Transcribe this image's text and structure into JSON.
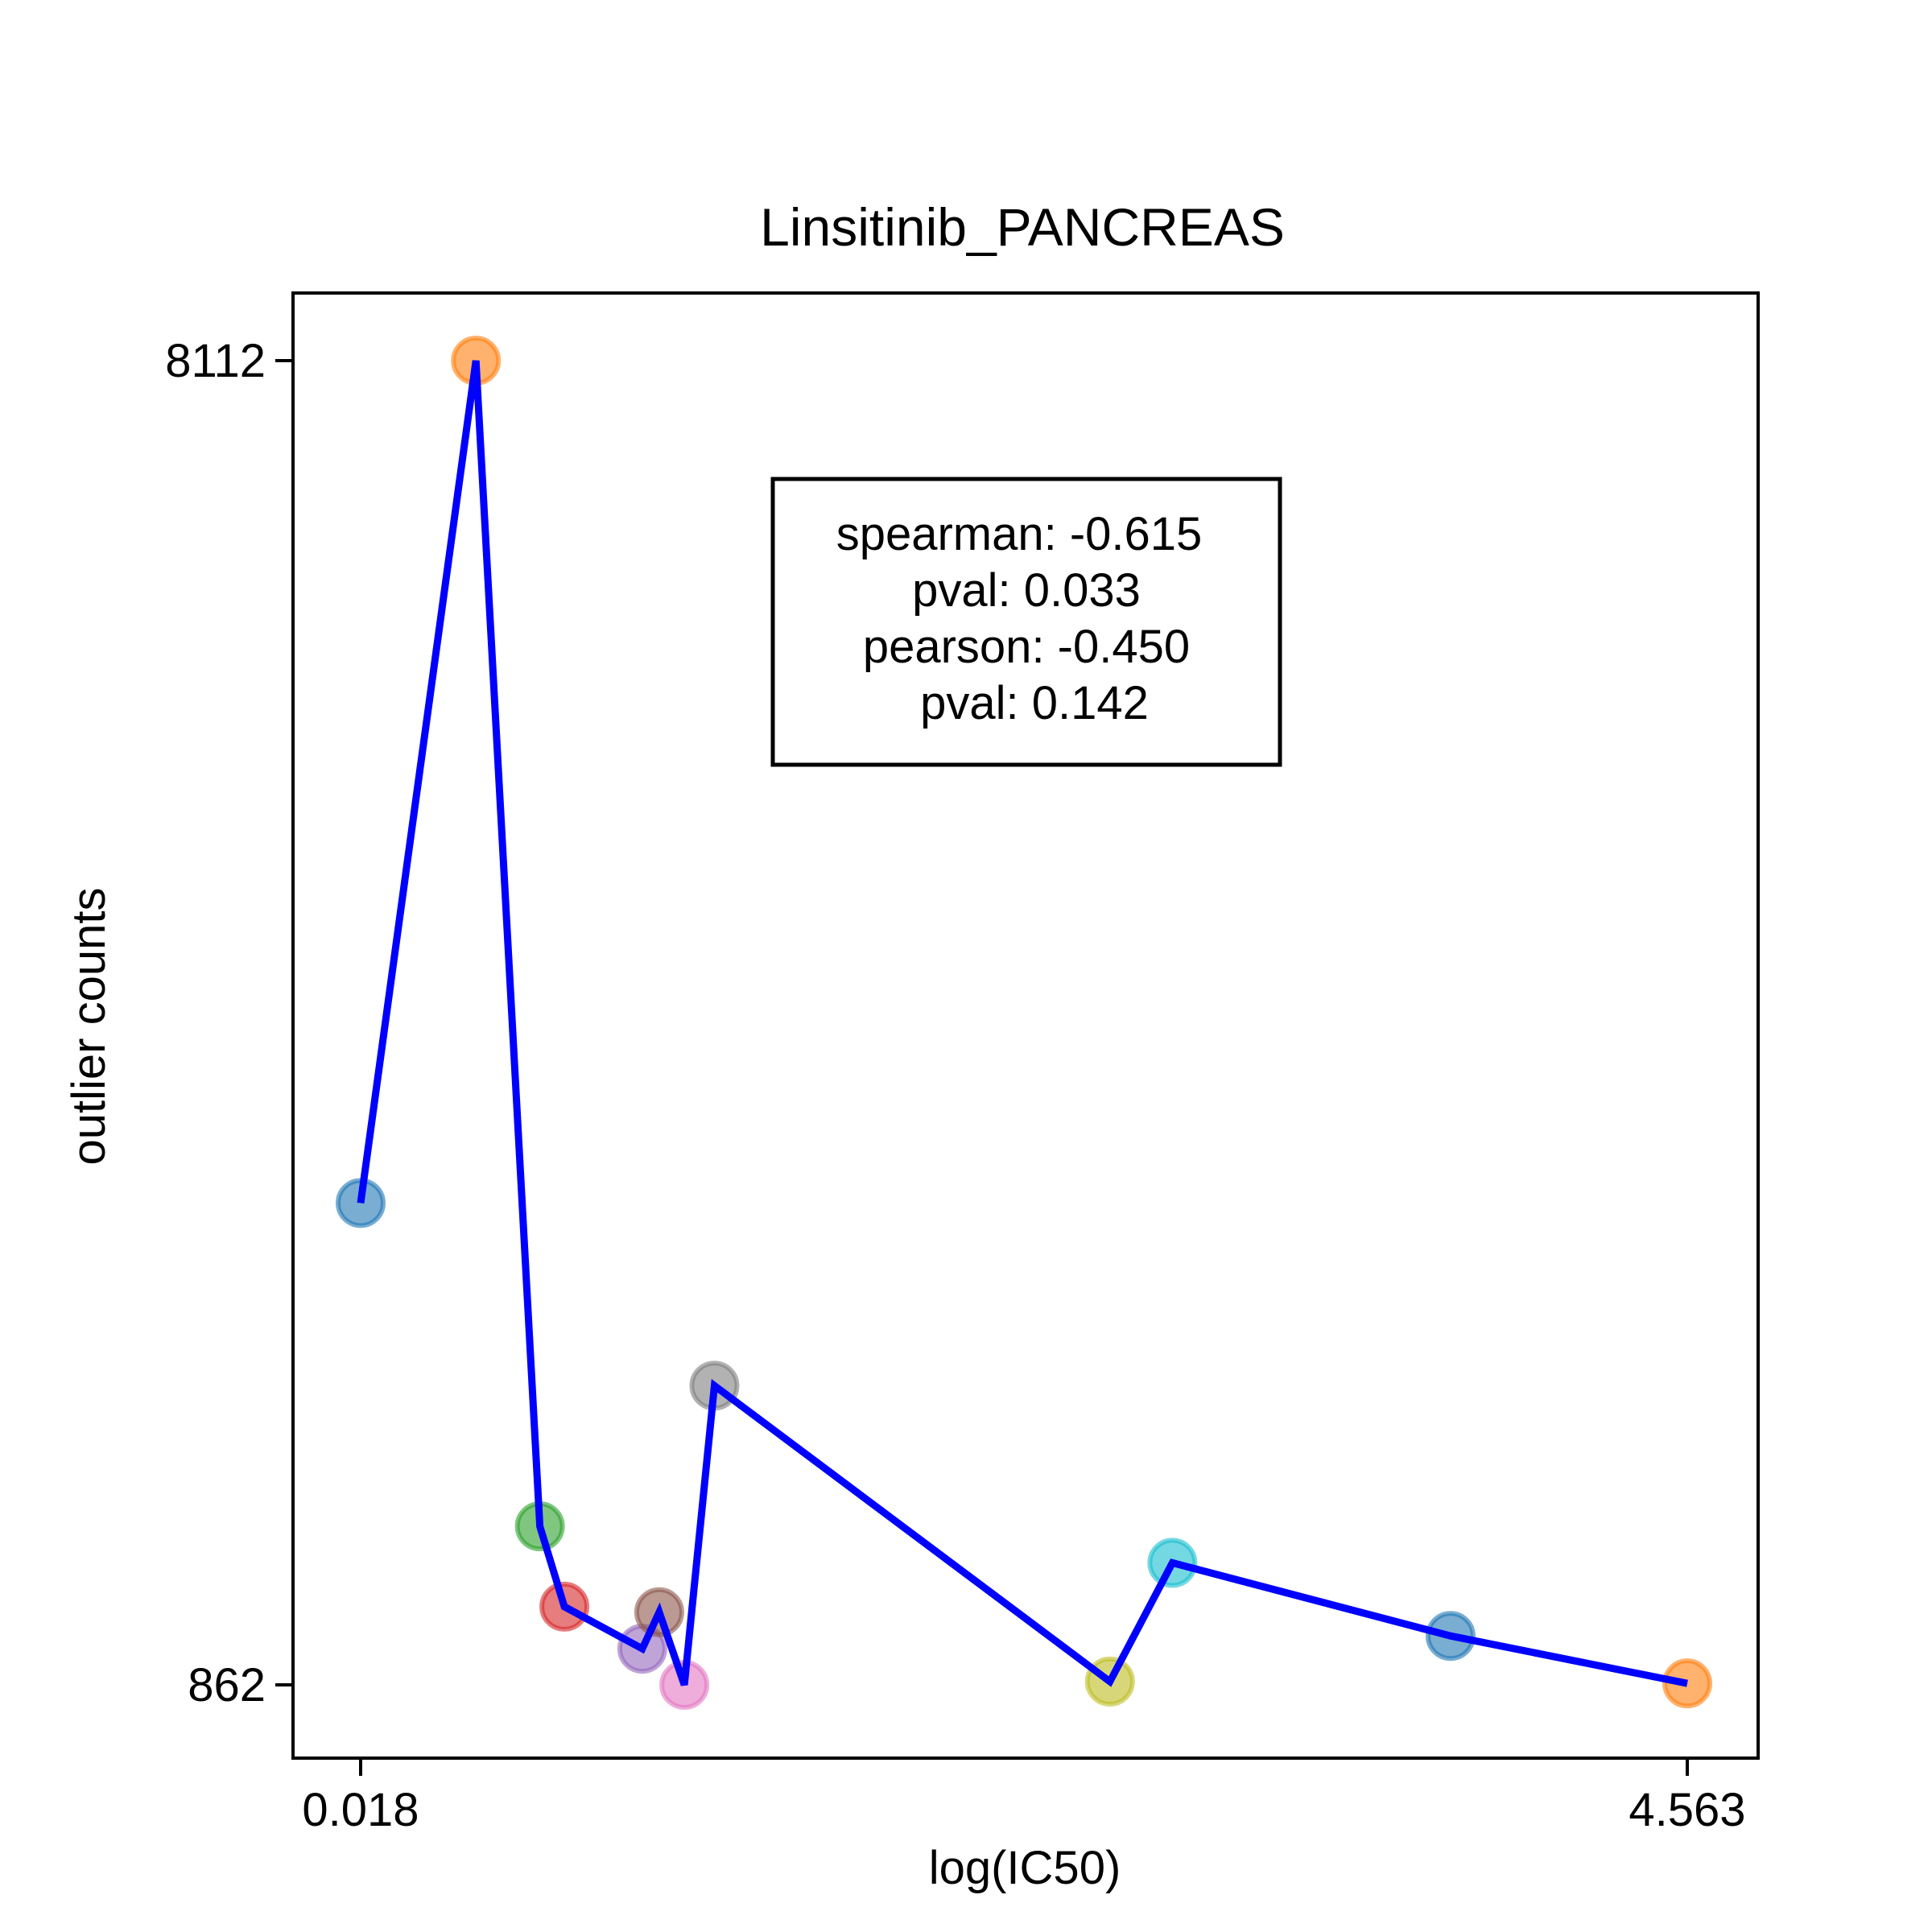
{
  "chart_data": {
    "type": "scatter",
    "title": "Linsitinib_PANCREAS",
    "xlabel": "log(IC50)",
    "ylabel": "outlier counts",
    "x_ticks": [
      "0.018",
      "4.563"
    ],
    "y_ticks": [
      "8112",
      "862"
    ],
    "xlim": [
      0.018,
      4.563
    ],
    "ylim": [
      862,
      8112
    ],
    "grid": false,
    "stats_box": [
      "spearman: -0.615",
      "pval: 0.033",
      "pearson: -0.450",
      "pval: 0.142"
    ],
    "line_color": "#0000ff",
    "points": [
      {
        "x": 0.018,
        "y": 3500,
        "color": "#1f77b4"
      },
      {
        "x": 0.413,
        "y": 8112,
        "color": "#ff7f0e"
      },
      {
        "x": 0.632,
        "y": 1730,
        "color": "#2ca02c"
      },
      {
        "x": 0.716,
        "y": 1290,
        "color": "#d62728"
      },
      {
        "x": 0.983,
        "y": 1060,
        "color": "#9467bd"
      },
      {
        "x": 1.041,
        "y": 1260,
        "color": "#8c564b"
      },
      {
        "x": 1.127,
        "y": 862,
        "color": "#e377c2"
      },
      {
        "x": 1.23,
        "y": 2500,
        "color": "#7f7f7f"
      },
      {
        "x": 2.585,
        "y": 880,
        "color": "#bcbd22"
      },
      {
        "x": 2.799,
        "y": 1530,
        "color": "#17becf"
      },
      {
        "x": 3.752,
        "y": 1130,
        "color": "#1f77b4"
      },
      {
        "x": 4.563,
        "y": 870,
        "color": "#ff7f0e"
      }
    ]
  }
}
